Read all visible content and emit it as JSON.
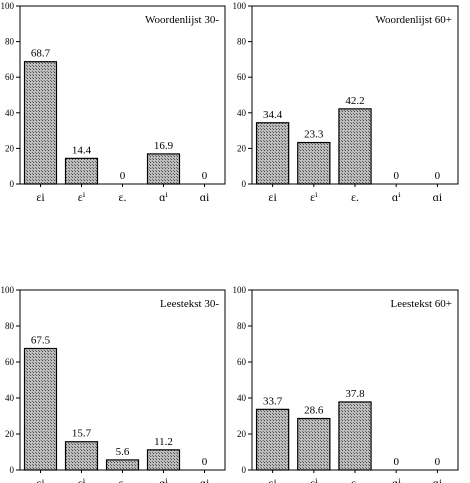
{
  "chart_data": [
    {
      "type": "bar",
      "title": "Woordenlijst 30-",
      "categories": [
        "εi",
        "εⁱ",
        "ε.",
        "ɑⁱ",
        "ɑi"
      ],
      "values": [
        68.7,
        14.4,
        0,
        16.9,
        0
      ],
      "value_labels": [
        "68.7",
        "14.4",
        "0",
        "16.9",
        "0"
      ],
      "ylim": [
        0,
        100
      ],
      "yticks": [
        "0",
        "20",
        "40",
        "60",
        "80",
        "100"
      ],
      "xlabel": "",
      "ylabel": ""
    },
    {
      "type": "bar",
      "title": "Woordenlijst 60+",
      "categories": [
        "εi",
        "εⁱ",
        "ε.",
        "ɑⁱ",
        "ɑi"
      ],
      "values": [
        34.4,
        23.3,
        42.2,
        0,
        0
      ],
      "value_labels": [
        "34.4",
        "23.3",
        "42.2",
        "0",
        "0"
      ],
      "ylim": [
        0,
        100
      ],
      "yticks": [
        "0",
        "20",
        "40",
        "60",
        "80",
        "100"
      ],
      "xlabel": "",
      "ylabel": ""
    },
    {
      "type": "bar",
      "title": "Leestekst 30-",
      "categories": [
        "εi",
        "εⁱ",
        "ε.",
        "ɑⁱ",
        "ɑi"
      ],
      "values": [
        67.5,
        15.7,
        5.6,
        11.2,
        0
      ],
      "value_labels": [
        "67.5",
        "15.7",
        "5.6",
        "11.2",
        "0"
      ],
      "ylim": [
        0,
        100
      ],
      "yticks": [
        "0",
        "20",
        "40",
        "60",
        "80",
        "100"
      ],
      "xlabel": "",
      "ylabel": ""
    },
    {
      "type": "bar",
      "title": "Leestekst 60+",
      "categories": [
        "εi",
        "εⁱ",
        "ε.",
        "ɑⁱ",
        "ɑi"
      ],
      "values": [
        33.7,
        28.6,
        37.8,
        0,
        0
      ],
      "value_labels": [
        "33.7",
        "28.6",
        "37.8",
        "0",
        "0"
      ],
      "ylim": [
        0,
        100
      ],
      "yticks": [
        "0",
        "20",
        "40",
        "60",
        "80",
        "100"
      ],
      "xlabel": "",
      "ylabel": ""
    }
  ]
}
